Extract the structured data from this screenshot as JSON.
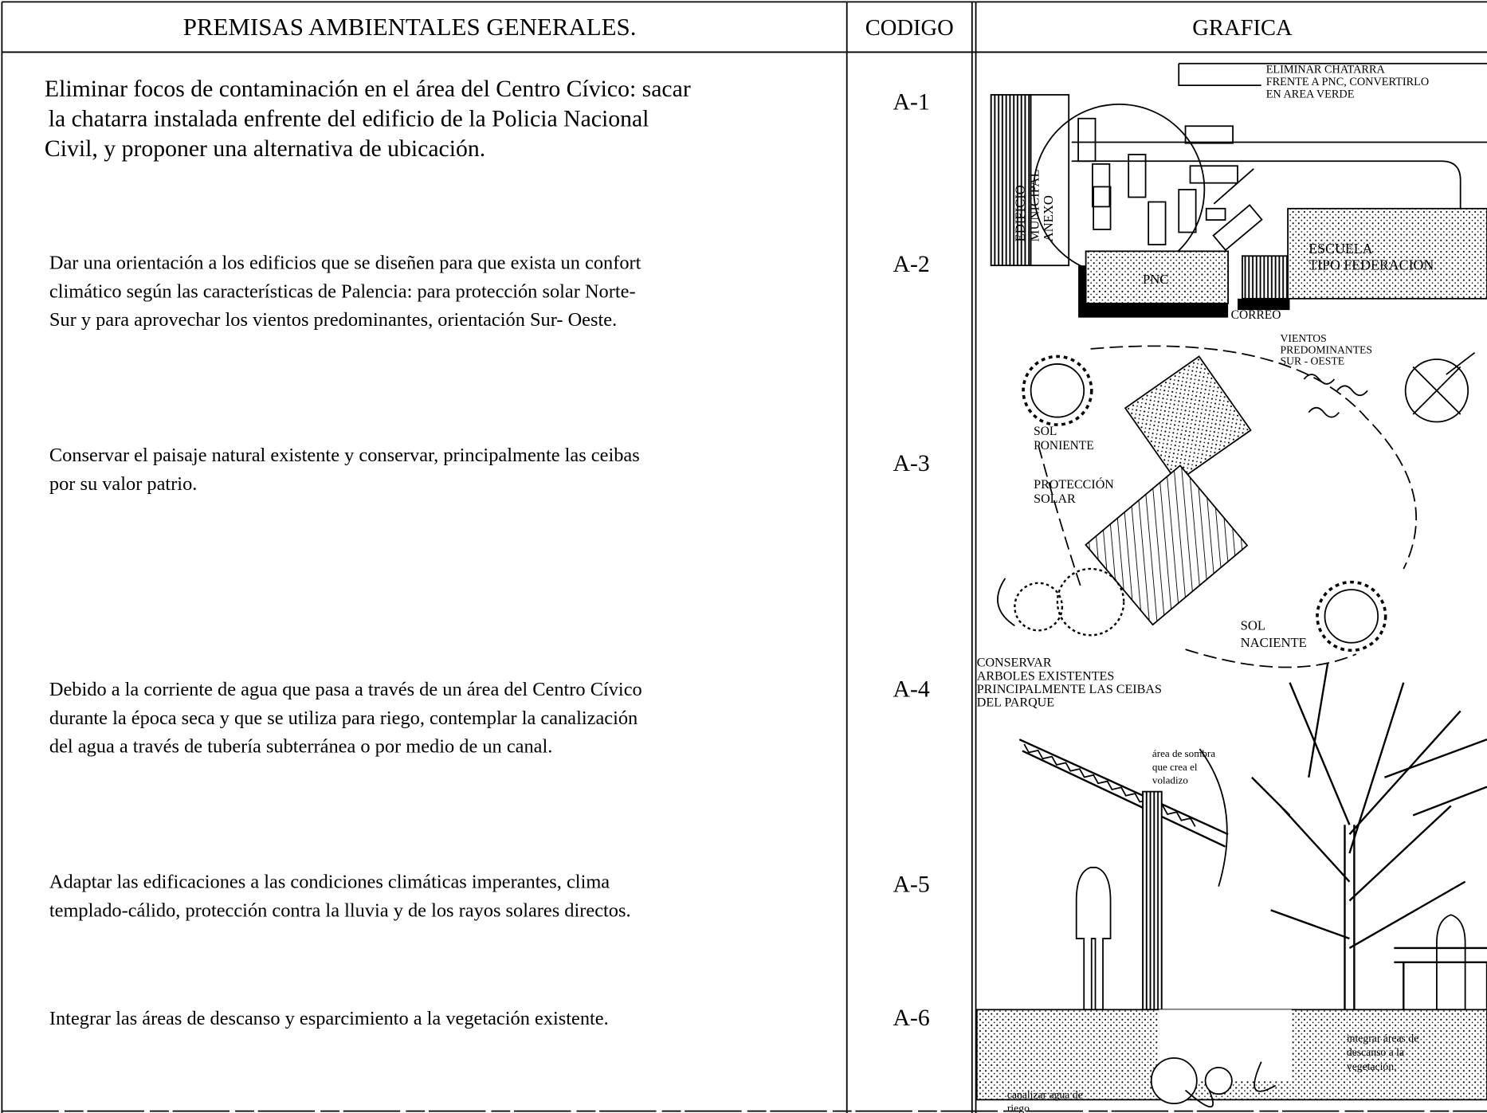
{
  "header": {
    "title": "PREMISAS AMBIENTALES GENERALES.",
    "code": "CODIGO",
    "graphic": "GRAFICA"
  },
  "rows": [
    {
      "text": [
        "Eliminar focos de contaminación en el área del Centro Cívico: sacar",
        "la chatarra instalada enfrente del edificio de la Policia Nacional",
        "Civil, y proponer una alternativa de ubicación."
      ],
      "code": "A-1"
    },
    {
      "text": [
        "Dar una orientación a los edificios que se diseñen para que exista un confort",
        "climático según las características de Palencia: para protección solar Norte-",
        "Sur y para aprovechar los vientos predominantes, orientación Sur- Oeste."
      ],
      "code": "A-2"
    },
    {
      "text": [
        "Conservar el paisaje natural existente y conservar, principalmente las ceibas",
        "por su valor patrio."
      ],
      "code": "A-3"
    },
    {
      "text": [
        "Debido a la corriente de agua que pasa a través de un área del Centro Cívico",
        "durante la época seca y que se utiliza para riego, contemplar la canalización",
        "del agua  a través de tubería subterránea o por medio de un canal."
      ],
      "code": "A-4"
    },
    {
      "text": [
        "Adaptar  las edificaciones a las condiciones climáticas imperantes, clima",
        "templado-cálido, protección contra la lluvia y de los rayos solares directos."
      ],
      "code": "A-5"
    },
    {
      "text": [
        "Integrar las áreas de descanso y esparcimiento a la vegetación existente."
      ],
      "code": "A-6"
    }
  ],
  "graphic_labels": [
    {
      "lines": [
        "ELIMINAR CHATARRA",
        "FRENTE A PNC, CONVERTIRLO",
        "EN AREA VERDE"
      ]
    },
    {
      "lines": [
        "EDIFICIO",
        "MUNICIPAL",
        "ANEXO"
      ]
    },
    {
      "lines": [
        "PNC"
      ]
    },
    {
      "lines": [
        "ESCUELA",
        "TIPO FEDERACION"
      ]
    },
    {
      "lines": [
        "CORREO"
      ]
    },
    {
      "lines": [
        "VIENTOS",
        "PREDOMINANTES",
        "SUR - OESTE"
      ]
    },
    {
      "lines": [
        "SOL",
        "PONIENTE"
      ]
    },
    {
      "lines": [
        "PROTECCIÓN",
        "SOLAR"
      ]
    },
    {
      "lines": [
        "SOL",
        "NACIENTE"
      ]
    },
    {
      "lines": [
        "CONSERVAR",
        "ARBOLES EXISTENTES",
        "PRINCIPALMENTE LAS CEIBAS",
        "DEL PARQUE"
      ]
    },
    {
      "lines": [
        "área de sombra",
        "que crea el",
        "voladizo"
      ]
    },
    {
      "lines": [
        "integrar áreas de",
        "descanso a la",
        "vegetación."
      ]
    },
    {
      "lines": [
        "canalizar agua de",
        "riego"
      ]
    }
  ]
}
